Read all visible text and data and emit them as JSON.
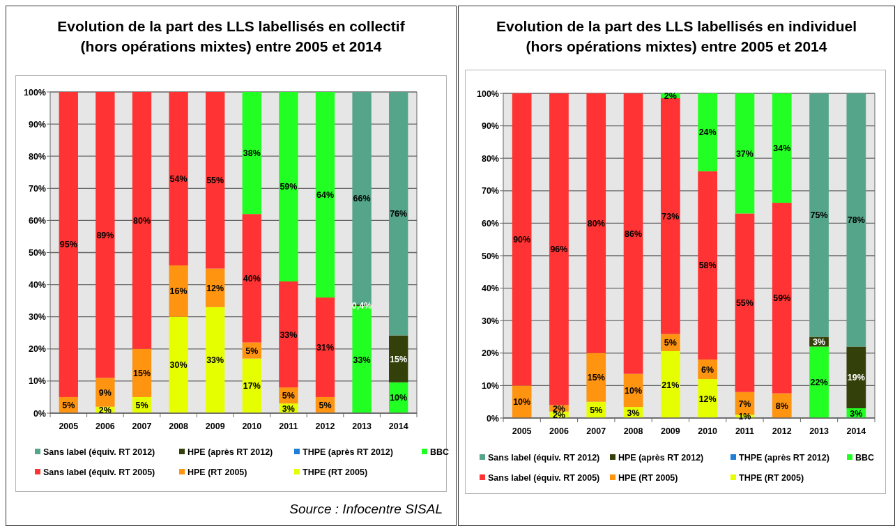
{
  "chart_data": [
    {
      "type": "bar",
      "stacked": true,
      "title": "Evolution de la part des LLS labellisés en collectif (hors opérations mixtes) entre 2005 et 2014",
      "categories": [
        "2005",
        "2006",
        "2007",
        "2008",
        "2009",
        "2010",
        "2011",
        "2012",
        "2013",
        "2014"
      ],
      "series": [
        {
          "name": "THPE (RT 2005)",
          "color": "#e6ff00",
          "values": [
            null,
            2,
            5,
            30,
            33,
            17,
            3,
            null,
            null,
            null
          ],
          "value_labels": [
            null,
            "2%",
            "5%",
            "30%",
            "33%",
            "17%",
            "3%",
            null,
            null,
            null
          ]
        },
        {
          "name": "HPE (RT 2005)",
          "color": "#ff9411",
          "values": [
            5,
            9,
            15,
            16,
            12,
            5,
            5,
            5,
            null,
            null
          ],
          "value_labels": [
            "5%",
            "9%",
            "15%",
            "16%",
            "12%",
            "5%",
            "5%",
            "5%",
            null,
            null
          ]
        },
        {
          "name": "Sans label (équiv. RT 2005)",
          "color": "#ff3333",
          "values": [
            95,
            89,
            80,
            54,
            55,
            40,
            33,
            31,
            null,
            null
          ],
          "value_labels": [
            "95%",
            "89%",
            "80%",
            "54%",
            "55%",
            "40%",
            "33%",
            "31%",
            null,
            null
          ]
        },
        {
          "name": "BBC",
          "color": "#22ff22",
          "values": [
            null,
            null,
            null,
            null,
            null,
            38,
            59,
            64,
            33.4,
            9.6
          ],
          "value_labels": [
            null,
            null,
            null,
            null,
            null,
            "38%",
            "59%",
            "64%",
            "33%",
            "10%"
          ]
        },
        {
          "name": "THPE (après RT 2012)",
          "color": "#1f7fd8",
          "values": [
            null,
            null,
            null,
            null,
            null,
            null,
            null,
            null,
            null,
            null
          ]
        },
        {
          "name": "HPE (après RT 2012)",
          "color": "#334009",
          "values": [
            null,
            null,
            null,
            null,
            null,
            null,
            null,
            null,
            0.4,
            14.6
          ],
          "value_labels": [
            null,
            null,
            null,
            null,
            null,
            null,
            null,
            null,
            "0,4%",
            "15%"
          ]
        },
        {
          "name": "Sans label (équiv. RT 2012)",
          "color": "#55a58a",
          "values": [
            null,
            null,
            null,
            null,
            null,
            null,
            null,
            null,
            66.2,
            75.8
          ],
          "value_labels": [
            null,
            null,
            null,
            null,
            null,
            null,
            null,
            null,
            "66%",
            "76%"
          ]
        }
      ],
      "ylim": [
        0,
        100
      ],
      "yticks": [
        {
          "value": 0,
          "label": "0%"
        },
        {
          "value": 10,
          "label": "10%"
        },
        {
          "value": 20,
          "label": "20%"
        },
        {
          "value": 30,
          "label": "30%"
        },
        {
          "value": 40,
          "label": "40%"
        },
        {
          "value": 50,
          "label": "50%"
        },
        {
          "value": 60,
          "label": "60%"
        },
        {
          "value": 70,
          "label": "70%"
        },
        {
          "value": 80,
          "label": "80%"
        },
        {
          "value": 90,
          "label": "90%"
        },
        {
          "value": 100,
          "label": "100%"
        }
      ],
      "grid": "y",
      "legend": "bottom",
      "annotations": [
        "Source : Infocentre SISAL"
      ]
    },
    {
      "type": "bar",
      "stacked": true,
      "title": "Evolution de la part des LLS labellisés en individuel (hors opérations mixtes) entre 2005 et 2014",
      "categories": [
        "2005",
        "2006",
        "2007",
        "2008",
        "2009",
        "2010",
        "2011",
        "2012",
        "2013",
        "2014"
      ],
      "series": [
        {
          "name": "THPE (RT 2005)",
          "color": "#e6ff00",
          "values": [
            null,
            2,
            5,
            3.4,
            20.6,
            12,
            1,
            null,
            null,
            null
          ],
          "value_labels": [
            null,
            "2%",
            "5%",
            "3%",
            "21%",
            "12%",
            "1%",
            null,
            null,
            null
          ]
        },
        {
          "name": "HPE (RT 2005)",
          "color": "#ff9411",
          "values": [
            10,
            2,
            15,
            10.2,
            5.3,
            6,
            7,
            7.6,
            null,
            null
          ],
          "value_labels": [
            "10%",
            "2%",
            "15%",
            "10%",
            "5%",
            "6%",
            "7%",
            "8%",
            null,
            null
          ]
        },
        {
          "name": "Sans label (équiv. RT 2005)",
          "color": "#ff3333",
          "values": [
            90,
            96,
            80,
            86.4,
            72.6,
            58,
            55,
            58.7,
            null,
            null
          ],
          "value_labels": [
            "90%",
            "96%",
            "80%",
            "86%",
            "73%",
            "58%",
            "55%",
            "59%",
            null,
            null
          ]
        },
        {
          "name": "BBC",
          "color": "#22ff22",
          "values": [
            null,
            null,
            null,
            null,
            1.5,
            24,
            37,
            33.7,
            22,
            3
          ],
          "value_labels": [
            null,
            null,
            null,
            null,
            "2%",
            "24%",
            "37%",
            "34%",
            "22%",
            "3%"
          ]
        },
        {
          "name": "THPE (après RT 2012)",
          "color": "#1f7fd8",
          "values": [
            null,
            null,
            null,
            null,
            null,
            null,
            null,
            null,
            null,
            null
          ]
        },
        {
          "name": "HPE (après RT 2012)",
          "color": "#334009",
          "values": [
            null,
            null,
            null,
            null,
            null,
            null,
            null,
            null,
            3,
            19
          ],
          "value_labels": [
            null,
            null,
            null,
            null,
            null,
            null,
            null,
            null,
            "3%",
            "19%"
          ]
        },
        {
          "name": "Sans label (équiv. RT 2012)",
          "color": "#55a58a",
          "values": [
            null,
            null,
            null,
            null,
            null,
            null,
            null,
            null,
            75,
            78
          ],
          "value_labels": [
            null,
            null,
            null,
            null,
            null,
            null,
            null,
            null,
            "75%",
            "78%"
          ]
        }
      ],
      "ylim": [
        0,
        100
      ],
      "yticks": [
        {
          "value": 0,
          "label": "0%"
        },
        {
          "value": 10,
          "label": "10%"
        },
        {
          "value": 20,
          "label": "20%"
        },
        {
          "value": 30,
          "label": "30%"
        },
        {
          "value": 40,
          "label": "40%"
        },
        {
          "value": 50,
          "label": "50%"
        },
        {
          "value": 60,
          "label": "60%"
        },
        {
          "value": 70,
          "label": "70%"
        },
        {
          "value": 80,
          "label": "80%"
        },
        {
          "value": 90,
          "label": "90%"
        },
        {
          "value": 100,
          "label": "100%"
        }
      ],
      "grid": "y",
      "legend": "bottom"
    }
  ]
}
